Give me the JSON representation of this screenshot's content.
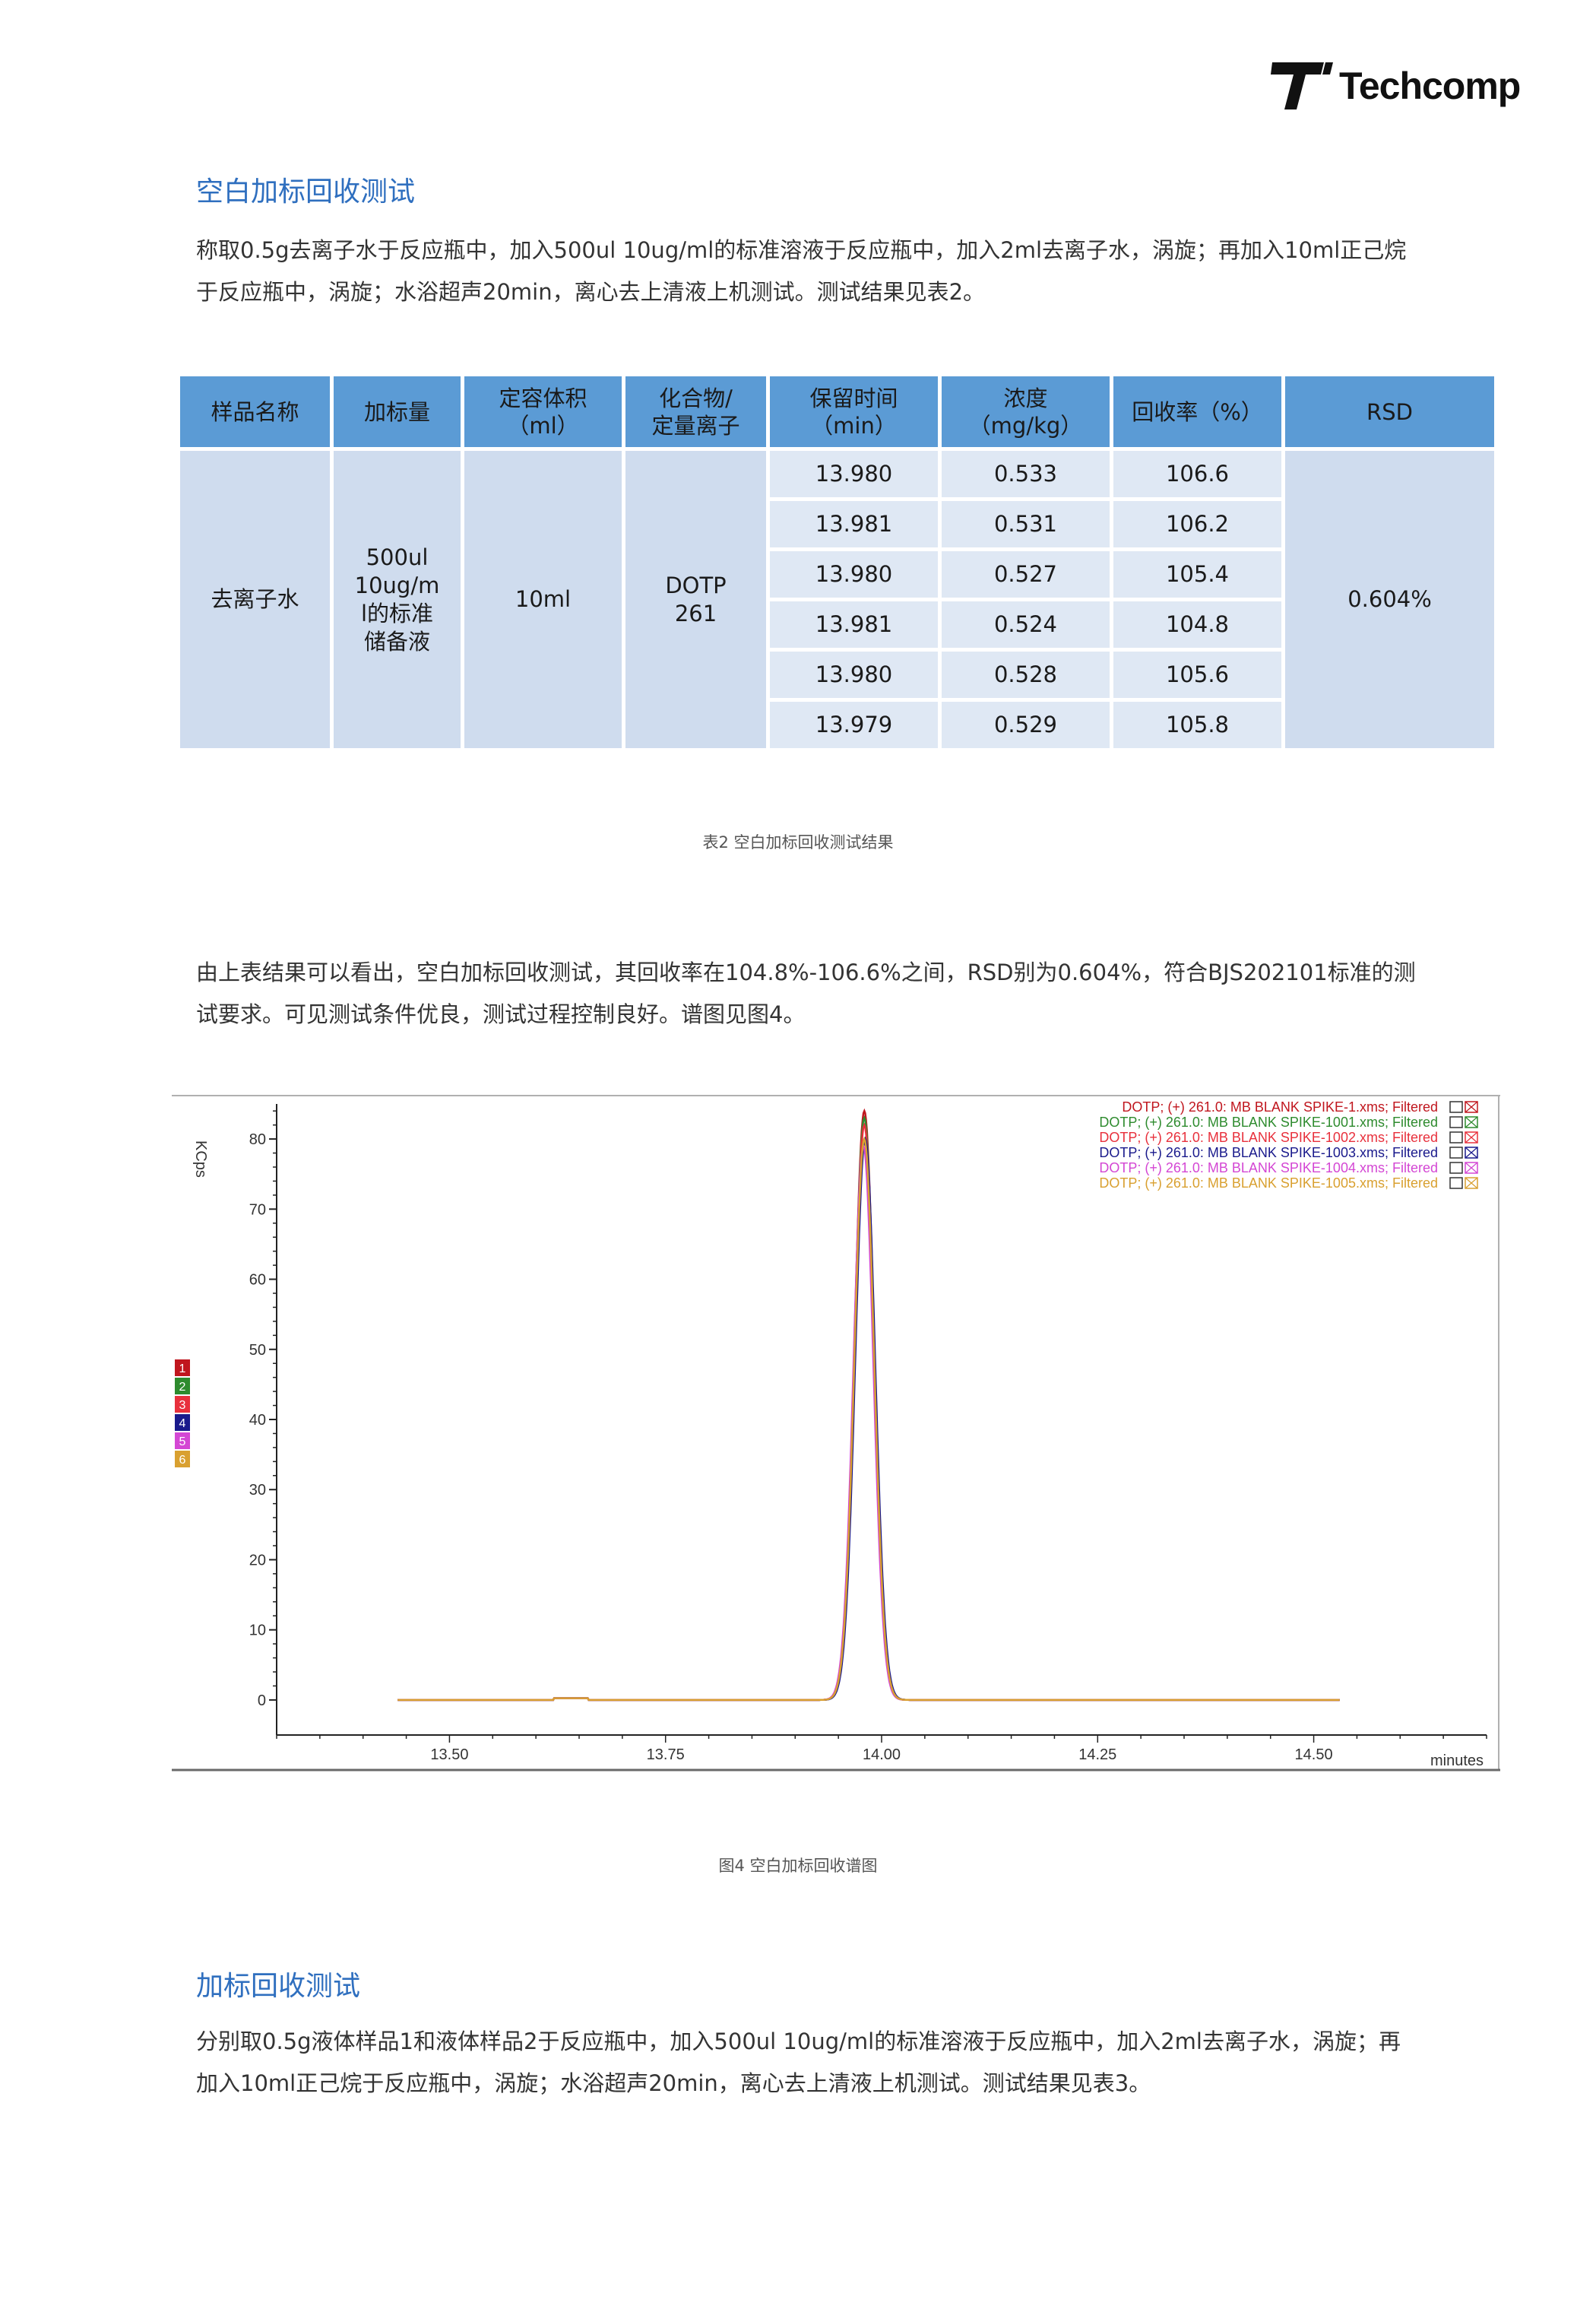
{
  "header": {
    "brand": "Techcomp"
  },
  "section1": {
    "title": "空白加标回收测试",
    "para_lines": [
      "称取0.5g去离子水于反应瓶中，加入500ul  10ug/ml的标准溶液于反应瓶中，加入2ml去离子水，涡旋；再加入10ml正己烷",
      "于反应瓶中，涡旋；水浴超声20min，离心去上清液上机测试。测试结果见表2。"
    ]
  },
  "table": {
    "headers": [
      [
        "样品名称"
      ],
      [
        "加标量"
      ],
      [
        "定容体积",
        "（ml）"
      ],
      [
        "化合物/",
        "定量离子"
      ],
      [
        "保留时间",
        "（min）"
      ],
      [
        "浓度",
        "（mg/kg）"
      ],
      [
        "回收率（%）"
      ],
      [
        "RSD"
      ]
    ],
    "sample": "去离子水",
    "spike_lines": [
      "500ul",
      "10ug/m",
      "l的标准",
      "储备液"
    ],
    "volume": "10ml",
    "compound_lines": [
      "DOTP",
      "261"
    ],
    "rows": [
      {
        "rt": "13.980",
        "conc": "0.533",
        "recovery": "106.6"
      },
      {
        "rt": "13.981",
        "conc": "0.531",
        "recovery": "106.2"
      },
      {
        "rt": "13.980",
        "conc": "0.527",
        "recovery": "105.4"
      },
      {
        "rt": "13.981",
        "conc": "0.524",
        "recovery": "104.8"
      },
      {
        "rt": "13.980",
        "conc": "0.528",
        "recovery": "105.6"
      },
      {
        "rt": "13.979",
        "conc": "0.529",
        "recovery": "105.8"
      }
    ],
    "rsd": "0.604%",
    "caption": "表2 空白加标回收测试结果"
  },
  "conclusion": {
    "lines": [
      "由上表结果可以看出，空白加标回收测试，其回收率在104.8%-106.6%之间，RSD别为0.604%，符合BJS202101标准的测",
      "试要求。可见测试条件优良，测试过程控制良好。谱图见图4。"
    ]
  },
  "chart_data": {
    "type": "line",
    "ylabel": "KCps",
    "xlabel": "minutes",
    "xlim": [
      13.3,
      14.7
    ],
    "ylim": [
      -5,
      85
    ],
    "x_ticks": [
      "13.50",
      "13.75",
      "14.00",
      "14.25",
      "14.50"
    ],
    "y_ticks": [
      "0",
      "10",
      "20",
      "30",
      "40",
      "50",
      "60",
      "70",
      "80"
    ],
    "baseline_range": [
      13.44,
      14.53
    ],
    "side_labels": [
      "1",
      "2",
      "3",
      "4",
      "5",
      "6"
    ],
    "series": [
      {
        "name": "DOTP;  (+) 261.0:  MB BLANK SPIKE-1.xms;  Filtered",
        "color": "#c0161e",
        "peak_x": 13.98,
        "peak_y": 84
      },
      {
        "name": "DOTP;  (+) 261.0:  MB BLANK SPIKE-1001.xms;  Filtered",
        "color": "#2e8b2e",
        "peak_x": 13.98,
        "peak_y": 83
      },
      {
        "name": "DOTP;  (+) 261.0:  MB BLANK SPIKE-1002.xms;  Filtered",
        "color": "#e8303c",
        "peak_x": 13.98,
        "peak_y": 82
      },
      {
        "name": "DOTP;  (+) 261.0:  MB BLANK SPIKE-1003.xms;  Filtered",
        "color": "#1a1a8c",
        "peak_x": 13.981,
        "peak_y": 80
      },
      {
        "name": "DOTP;  (+) 261.0:  MB BLANK SPIKE-1004.xms;  Filtered",
        "color": "#d447d4",
        "peak_x": 13.979,
        "peak_y": 79
      },
      {
        "name": "DOTP;  (+) 261.0:  MB BLANK SPIKE-1005.xms;  Filtered",
        "color": "#d9a030",
        "peak_x": 13.98,
        "peak_y": 80
      }
    ]
  },
  "figure_caption": "图4 空白加标回收谱图",
  "section2": {
    "title": "加标回收测试",
    "para_lines": [
      "分别取0.5g液体样品1和液体样品2于反应瓶中，加入500ul  10ug/ml的标准溶液于反应瓶中，加入2ml去离子水，涡旋；再",
      "加入10ml正己烷于反应瓶中，涡旋；水浴超声20min，离心去上清液上机测试。测试结果见表3。"
    ]
  }
}
